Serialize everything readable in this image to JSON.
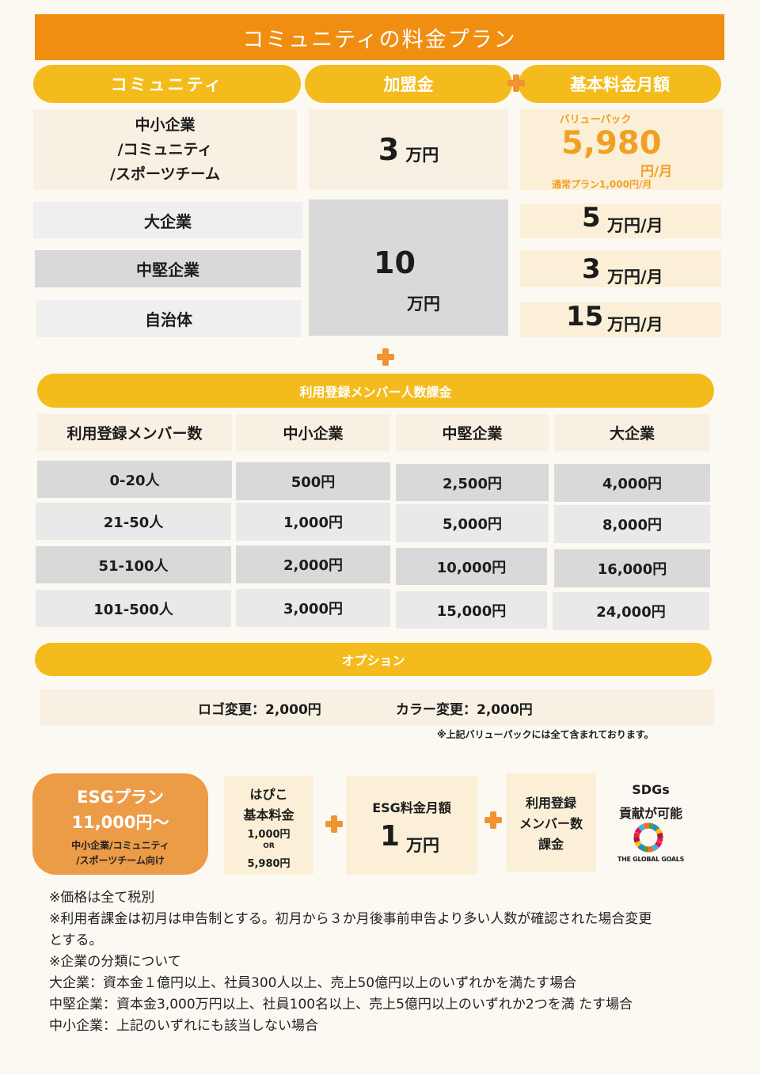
{
  "title": "コミュニティの料金プラン",
  "headers": {
    "community": "コミュニティ",
    "join_fee": "加盟金",
    "monthly_fee": "基本料金月額"
  },
  "sme_row": {
    "name_lines": [
      "中小企業",
      "/コミュニティ",
      "/スポーツチーム"
    ],
    "join_amount": "3",
    "join_unit": "万円",
    "value_pack_label": "バリューパック",
    "value_pack_price": "5,980",
    "value_pack_unit": "円/月",
    "normal_plan": "通常プラン1,000円/月"
  },
  "large_rows": {
    "join_amount": "10",
    "join_unit": "万円",
    "items": [
      {
        "name": "大企業",
        "amount": "5",
        "unit": "万円/月"
      },
      {
        "name": "中堅企業",
        "amount": "3",
        "unit": "万円/月"
      },
      {
        "name": "自治体",
        "amount": "15",
        "unit": "万円/月"
      }
    ]
  },
  "member_fee": {
    "title": "利用登録メンバー人数課金",
    "columns": [
      "利用登録メンバー数",
      "中小企業",
      "中堅企業",
      "大企業"
    ],
    "rows": [
      [
        "0-20人",
        "500円",
        "2,500円",
        "4,000円"
      ],
      [
        "21-50人",
        "1,000円",
        "5,000円",
        "8,000円"
      ],
      [
        "51-100人",
        "2,000円",
        "10,000円",
        "16,000円"
      ],
      [
        "101-500人",
        "3,000円",
        "15,000円",
        "24,000円"
      ]
    ]
  },
  "options": {
    "title": "オプション",
    "logo_change": "ロゴ変更：2,000円",
    "color_change": "カラー変更：2,000円",
    "note": "※上記バリューパックには全て含まれております。"
  },
  "esg": {
    "plan_name": "ESGプラン",
    "plan_price": "11,000円〜",
    "target_line1": "中小企業/コミュニティ",
    "target_line2": "/スポーツチーム向け",
    "hapico_line1": "はぴこ",
    "hapico_line2": "基本料金",
    "hapico_price1": "1,000円",
    "hapico_or": "OR",
    "hapico_price2": "5,980円",
    "esg_fee_label": "ESG料金月額",
    "esg_fee_amount": "1",
    "esg_fee_unit": "万円",
    "member_line1": "利用登録",
    "member_line2": "メンバー数",
    "member_line3": "課金",
    "sdgs_line1": "SDGs",
    "sdgs_line2": "貢献が可能",
    "sdgs_logo_text": "THE GLOBAL GOALS"
  },
  "notes": [
    "※価格は全て税別",
    "※利用者課金は初月は申告制とする。初月から３か月後事前申告より多い人数が確認された場合変更",
    "とする。",
    "※企業の分類について",
    "大企業：資本金１億円以上、社員300人以上、売上50億円以上のいずれかを満たす場合",
    "中堅企業：資本金3,000万円以上、社員100名以上、売上5億円以上のいずれか2つを満 たす場合",
    "中小企業：上記のいずれにも該当しない場合"
  ],
  "colors": {
    "orange": "#ef8e11",
    "yellow": "#f3bc1c",
    "plus": "#f09330",
    "esg_orange": "#ec9b47",
    "value_pack": "#f0a025"
  }
}
